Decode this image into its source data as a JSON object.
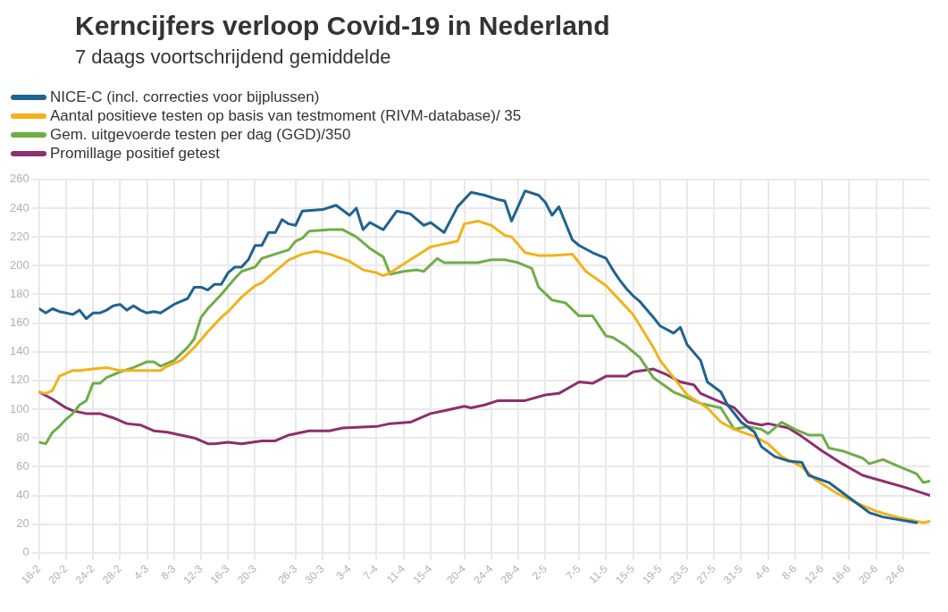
{
  "chart_data": {
    "type": "line",
    "title": "Kerncijfers verloop Covid-19 in Nederland",
    "subtitle": "7 daags voortschrijdend gemiddelde",
    "xlim": [
      "--02-16",
      "--06-28"
    ],
    "xticks": [
      {
        "value": "--02-16",
        "label": "16-2"
      },
      {
        "value": "--02-20",
        "label": "20-2"
      },
      {
        "value": "--02-24",
        "label": "24-2"
      },
      {
        "value": "--02-28",
        "label": "28-2"
      },
      {
        "value": "--03-04",
        "label": "4-3"
      },
      {
        "value": "--03-08",
        "label": "8-3"
      },
      {
        "value": "--03-12",
        "label": "12-3"
      },
      {
        "value": "--03-16",
        "label": "16-3"
      },
      {
        "value": "--03-20",
        "label": "20-3"
      },
      {
        "value": "--03-26",
        "label": "26-3"
      },
      {
        "value": "--03-30",
        "label": "30-3"
      },
      {
        "value": "--04-03",
        "label": "3-4"
      },
      {
        "value": "--04-07",
        "label": "7-4"
      },
      {
        "value": "--04-11",
        "label": "11-4"
      },
      {
        "value": "--04-15",
        "label": "15-4"
      },
      {
        "value": "--04-20",
        "label": "20-4"
      },
      {
        "value": "--04-24",
        "label": "24-4"
      },
      {
        "value": "--04-28",
        "label": "28-4"
      },
      {
        "value": "--05-02",
        "label": "2-5"
      },
      {
        "value": "--05-07",
        "label": "7-5"
      },
      {
        "value": "--05-11",
        "label": "11-5"
      },
      {
        "value": "--05-15",
        "label": "15-5"
      },
      {
        "value": "--05-19",
        "label": "19-5"
      },
      {
        "value": "--05-23",
        "label": "23-5"
      },
      {
        "value": "--05-27",
        "label": "27-5"
      },
      {
        "value": "--05-31",
        "label": "31-5"
      },
      {
        "value": "--06-04",
        "label": "4-6"
      },
      {
        "value": "--06-08",
        "label": "8-6"
      },
      {
        "value": "--06-12",
        "label": "12-6"
      },
      {
        "value": "--06-16",
        "label": "16-6"
      },
      {
        "value": "--06-20",
        "label": "20-6"
      },
      {
        "value": "--06-24",
        "label": "24-6"
      }
    ],
    "ylim": [
      0,
      260
    ],
    "yticks": [
      0,
      20,
      40,
      60,
      80,
      100,
      120,
      140,
      160,
      180,
      200,
      220,
      240,
      260
    ],
    "grid": true,
    "legend": "top left",
    "marker": "none",
    "line_style": "solid",
    "series": [
      {
        "name": "NICE-C (incl. correcties voor bijplussen)",
        "color": "#1f6391",
        "x": [
          "--02-16",
          "--02-17",
          "--02-18",
          "--02-19",
          "--02-20",
          "--02-21",
          "--02-22",
          "--02-23",
          "--02-24",
          "--02-25",
          "--02-26",
          "--02-27",
          "--02-28",
          "--03-01",
          "--03-02",
          "--03-03",
          "--03-04",
          "--03-05",
          "--03-06",
          "--03-07",
          "--03-08",
          "--03-09",
          "--03-10",
          "--03-11",
          "--03-12",
          "--03-13",
          "--03-14",
          "--03-15",
          "--03-16",
          "--03-17",
          "--03-18",
          "--03-19",
          "--03-20",
          "--03-21",
          "--03-22",
          "--03-23",
          "--03-24",
          "--03-25",
          "--03-26",
          "--03-27",
          "--03-30",
          "--04-01",
          "--04-03",
          "--04-04",
          "--04-05",
          "--04-06",
          "--04-08",
          "--04-10",
          "--04-12",
          "--04-14",
          "--04-15",
          "--04-17",
          "--04-19",
          "--04-21",
          "--04-23",
          "--04-25",
          "--04-26",
          "--04-27",
          "--04-29",
          "--05-01",
          "--05-02",
          "--05-03",
          "--05-04",
          "--05-06",
          "--05-07",
          "--05-09",
          "--05-11",
          "--05-12",
          "--05-13",
          "--05-14",
          "--05-15",
          "--05-16",
          "--05-18",
          "--05-19",
          "--05-21",
          "--05-22",
          "--05-23",
          "--05-25",
          "--05-26",
          "--05-28",
          "--05-29",
          "--05-31",
          "--06-02",
          "--06-03",
          "--06-05",
          "--06-07",
          "--06-09",
          "--06-10",
          "--06-13",
          "--06-15",
          "--06-17",
          "--06-19",
          "--06-21",
          "--06-26"
        ],
        "values": [
          170,
          167,
          170,
          168,
          167,
          166,
          169,
          163,
          167,
          167,
          169,
          172,
          173,
          169,
          172,
          169,
          167,
          168,
          167,
          170,
          173,
          175,
          177,
          185,
          185,
          183,
          187,
          187,
          195,
          199,
          199,
          204,
          214,
          214,
          223,
          223,
          232,
          229,
          228,
          238,
          239,
          242,
          235,
          240,
          225,
          230,
          225,
          238,
          236,
          228,
          230,
          223,
          241,
          251,
          249,
          246,
          245,
          231,
          252,
          249,
          244,
          235,
          241,
          218,
          214,
          209,
          205,
          197,
          190,
          184,
          179,
          175,
          164,
          158,
          153,
          157,
          145,
          134,
          119,
          112,
          103,
          91,
          84,
          74,
          67,
          64,
          63,
          54,
          49,
          42,
          35,
          28,
          25,
          21
        ]
      },
      {
        "name": "Aantal positieve testen op basis van testmoment (RIVM-database)/ 35",
        "color": "#f2b21b",
        "x": [
          "--02-16",
          "--02-17",
          "--02-18",
          "--02-19",
          "--02-20",
          "--02-21",
          "--02-22",
          "--02-24",
          "--02-26",
          "--02-28",
          "--03-02",
          "--03-04",
          "--03-06",
          "--03-07",
          "--03-09",
          "--03-11",
          "--03-13",
          "--03-15",
          "--03-16",
          "--03-18",
          "--03-20",
          "--03-21",
          "--03-23",
          "--03-25",
          "--03-27",
          "--03-29",
          "--03-31",
          "--04-03",
          "--04-05",
          "--04-07",
          "--04-08",
          "--04-09",
          "--04-12",
          "--04-15",
          "--04-17",
          "--04-19",
          "--04-20",
          "--04-22",
          "--04-24",
          "--04-26",
          "--04-27",
          "--04-29",
          "--05-01",
          "--05-03",
          "--05-06",
          "--05-08",
          "--05-11",
          "--05-13",
          "--05-15",
          "--05-18",
          "--05-19",
          "--05-21",
          "--05-23",
          "--05-26",
          "--05-28",
          "--05-30",
          "--06-02",
          "--06-04",
          "--06-06",
          "--06-09",
          "--06-11",
          "--06-14",
          "--06-17",
          "--06-20",
          "--06-23",
          "--06-25",
          "--06-27",
          "--06-28"
        ],
        "values": [
          112,
          111,
          113,
          123,
          125,
          127,
          127,
          128,
          129,
          127,
          127,
          127,
          127,
          130,
          134,
          143,
          154,
          164,
          168,
          178,
          186,
          188,
          196,
          204,
          208,
          210,
          208,
          203,
          197,
          195,
          193,
          195,
          204,
          213,
          215,
          217,
          229,
          231,
          228,
          221,
          220,
          209,
          207,
          207,
          208,
          196,
          186,
          176,
          166,
          143,
          134,
          122,
          110,
          101,
          91,
          86,
          81,
          76,
          67,
          60,
          51,
          42,
          35,
          29,
          25,
          23,
          21,
          22
        ]
      },
      {
        "name": "Gem. uitgevoerde testen per dag (GGD)/350",
        "color": "#70ad47",
        "x": [
          "--02-16",
          "--02-17",
          "--02-18",
          "--02-19",
          "--02-20",
          "--02-21",
          "--02-22",
          "--02-23",
          "--02-24",
          "--02-25",
          "--02-26",
          "--02-28",
          "--03-02",
          "--03-04",
          "--03-05",
          "--03-06",
          "--03-07",
          "--03-08",
          "--03-10",
          "--03-11",
          "--03-12",
          "--03-13",
          "--03-15",
          "--03-17",
          "--03-18",
          "--03-20",
          "--03-21",
          "--03-23",
          "--03-25",
          "--03-26",
          "--03-27",
          "--03-28",
          "--03-31",
          "--04-02",
          "--04-04",
          "--04-06",
          "--04-08",
          "--04-09",
          "--04-11",
          "--04-13",
          "--04-14",
          "--04-16",
          "--04-17",
          "--04-20",
          "--04-22",
          "--04-24",
          "--04-26",
          "--04-28",
          "--04-30",
          "--05-01",
          "--05-03",
          "--05-05",
          "--05-07",
          "--05-09",
          "--05-11",
          "--05-12",
          "--05-14",
          "--05-16",
          "--05-18",
          "--05-21",
          "--05-22",
          "--05-25",
          "--05-26",
          "--05-28",
          "--05-30",
          "--06-01",
          "--06-03",
          "--06-04",
          "--06-06",
          "--06-08",
          "--06-10",
          "--06-12",
          "--06-13",
          "--06-15",
          "--06-18",
          "--06-19",
          "--06-21",
          "--06-23",
          "--06-25",
          "--06-26",
          "--06-27",
          "--06-28"
        ],
        "values": [
          77,
          76,
          84,
          88,
          93,
          97,
          103,
          106,
          118,
          118,
          122,
          126,
          129,
          133,
          133,
          130,
          132,
          134,
          143,
          149,
          164,
          170,
          180,
          191,
          196,
          199,
          205,
          208,
          211,
          217,
          219,
          224,
          225,
          225,
          220,
          212,
          206,
          194,
          196,
          197,
          196,
          205,
          202,
          202,
          202,
          204,
          204,
          202,
          198,
          185,
          176,
          174,
          165,
          165,
          151,
          150,
          144,
          136,
          122,
          112,
          110,
          104,
          103,
          101,
          86,
          88,
          86,
          83,
          91,
          86,
          82,
          82,
          73,
          71,
          66,
          62,
          65,
          61,
          57,
          55,
          49,
          50
        ]
      },
      {
        "name": "Promillage positief getest",
        "color": "#8e2f6e",
        "x": [
          "--02-16",
          "--02-18",
          "--02-20",
          "--02-21",
          "--02-23",
          "--02-25",
          "--02-27",
          "--03-01",
          "--03-03",
          "--03-05",
          "--03-07",
          "--03-09",
          "--03-11",
          "--03-13",
          "--03-14",
          "--03-16",
          "--03-18",
          "--03-21",
          "--03-23",
          "--03-25",
          "--03-28",
          "--03-31",
          "--04-02",
          "--04-07",
          "--04-09",
          "--04-12",
          "--04-15",
          "--04-17",
          "--04-20",
          "--04-21",
          "--04-23",
          "--04-25",
          "--04-29",
          "--05-02",
          "--05-04",
          "--05-07",
          "--05-09",
          "--05-11",
          "--05-14",
          "--05-15",
          "--05-18",
          "--05-20",
          "--05-22",
          "--05-24",
          "--05-25",
          "--05-28",
          "--05-30",
          "--06-01",
          "--06-03",
          "--06-04",
          "--06-07",
          "--06-09",
          "--06-12",
          "--06-15",
          "--06-18",
          "--06-21",
          "--06-24",
          "--06-28"
        ],
        "values": [
          112,
          107,
          101,
          99,
          97,
          97,
          94,
          90,
          89,
          85,
          84,
          82,
          80,
          76,
          76,
          77,
          76,
          78,
          78,
          82,
          85,
          85,
          87,
          88,
          90,
          91,
          97,
          99,
          102,
          101,
          103,
          106,
          106,
          110,
          111,
          119,
          118,
          123,
          123,
          126,
          128,
          124,
          119,
          117,
          111,
          105,
          101,
          91,
          89,
          90,
          87,
          81,
          71,
          62,
          54,
          50,
          46,
          40
        ]
      }
    ]
  }
}
